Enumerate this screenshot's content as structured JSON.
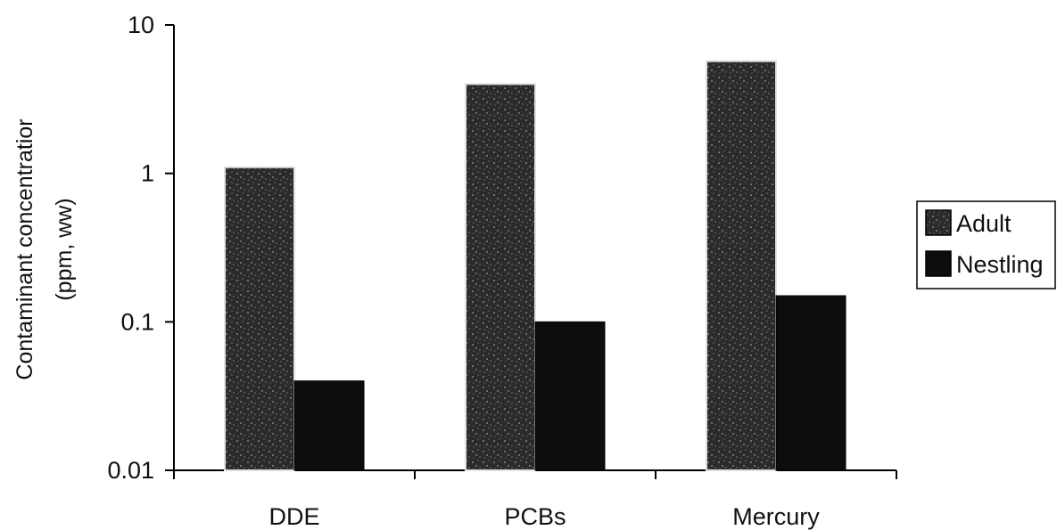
{
  "chart_data": {
    "type": "bar",
    "scale": "log",
    "categories": [
      "DDE",
      "PCBs",
      "Mercury"
    ],
    "series": [
      {
        "name": "Adult",
        "values": [
          1.1,
          4.0,
          5.7
        ],
        "color": "#2b2b2b",
        "pattern": "speckled"
      },
      {
        "name": "Nestling",
        "values": [
          0.04,
          0.1,
          0.15
        ],
        "color": "#0d0d0d",
        "pattern": "solid"
      }
    ],
    "ylim": [
      0.01,
      10
    ],
    "yticks": [
      "0.01",
      "0.1",
      "1",
      "10"
    ],
    "ylabel_line1": "Contaminant concentratior",
    "ylabel_line2": "(ppm, ww)",
    "legend_position": "right",
    "grid": false
  }
}
